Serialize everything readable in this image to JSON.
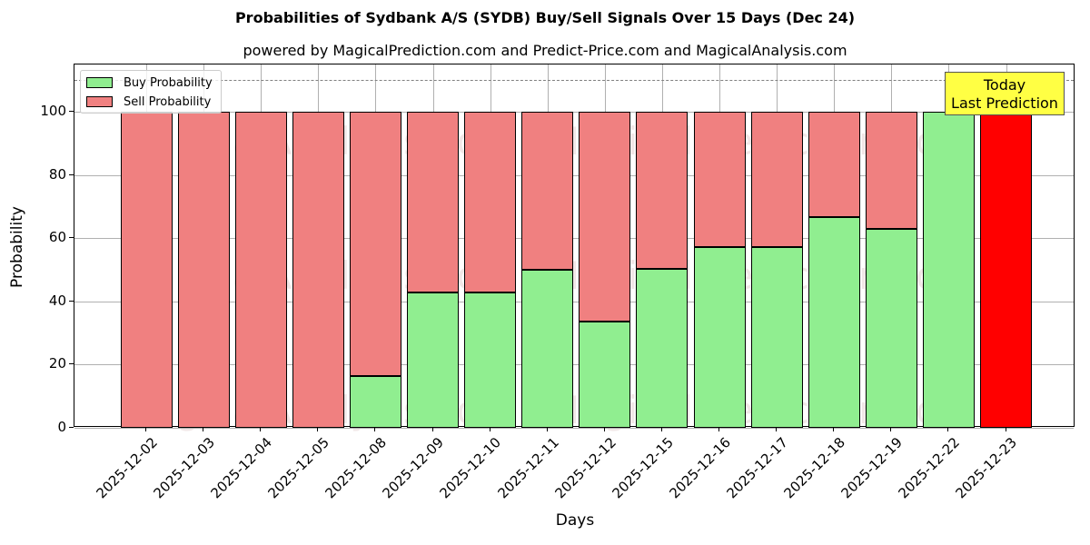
{
  "title": "Probabilities of Sydbank A/S (SYDB) Buy/Sell Signals Over 15 Days (Dec 24)",
  "subtitle": "powered by MagicalPrediction.com and Predict-Price.com and MagicalAnalysis.com",
  "legend": {
    "buy": "Buy Probability",
    "sell": "Sell Probability"
  },
  "annotation": {
    "line1": "Today",
    "line2": "Last Prediction"
  },
  "watermarks": [
    "MagicalAnalysis.com",
    "MagicalPrediction.com"
  ],
  "colors": {
    "buy": "#90ee90",
    "sell": "#f08080",
    "today": "#ff0000",
    "annotation_bg": "#ffff44"
  },
  "chart_data": {
    "type": "bar",
    "stacked": true,
    "title": "Probabilities of Sydbank A/S (SYDB) Buy/Sell Signals Over 15 Days (Dec 24)",
    "subtitle": "powered by MagicalPrediction.com and Predict-Price.com and MagicalAnalysis.com",
    "xlabel": "Days",
    "ylabel": "Probability",
    "ylim": [
      0,
      115
    ],
    "yticks": [
      0,
      20,
      40,
      60,
      80,
      100
    ],
    "grid": true,
    "legend_position": "upper left",
    "reference_line": {
      "y": 110,
      "style": "dashed"
    },
    "categories": [
      "2025-12-02",
      "2025-12-03",
      "2025-12-04",
      "2025-12-05",
      "2025-12-08",
      "2025-12-09",
      "2025-12-10",
      "2025-12-11",
      "2025-12-12",
      "2025-12-15",
      "2025-12-16",
      "2025-12-17",
      "2025-12-18",
      "2025-12-19",
      "2025-12-22",
      "2025-12-23"
    ],
    "series": [
      {
        "name": "Buy Probability",
        "values": [
          0,
          0,
          0,
          0,
          16.5,
          42.8,
          42.8,
          50,
          33.5,
          50.2,
          57.1,
          57.1,
          66.8,
          63,
          100,
          0
        ]
      },
      {
        "name": "Sell Probability",
        "values": [
          100,
          100,
          100,
          100,
          83.5,
          57.2,
          57.2,
          50,
          66.5,
          49.8,
          42.9,
          42.9,
          33.2,
          37,
          0,
          100
        ]
      }
    ],
    "annotations": [
      {
        "text": "Today\nLast Prediction",
        "x": "2025-12-23"
      }
    ]
  }
}
